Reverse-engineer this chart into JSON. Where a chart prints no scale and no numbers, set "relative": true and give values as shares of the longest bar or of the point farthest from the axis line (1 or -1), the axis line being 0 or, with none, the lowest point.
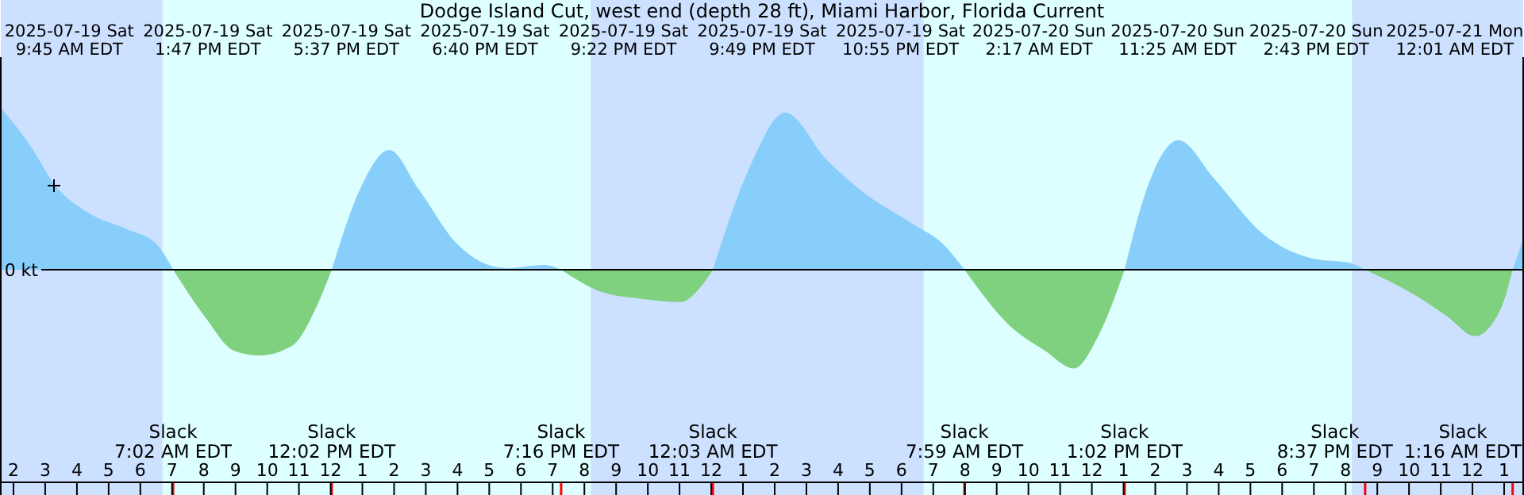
{
  "chart_data": {
    "type": "area",
    "title": "Dodge Island Cut, west end (depth 28 ft), Miami Harbor, Florida Current",
    "relative": true,
    "x": [
      "2025-07-19T01:36",
      "2025-07-19T02:31",
      "2025-07-19T03:17",
      "2025-07-19T04:22",
      "2025-07-19T05:35",
      "2025-07-19T06:30",
      "2025-07-19T07:02",
      "2025-07-19T08:02",
      "2025-07-19T08:57",
      "2025-07-19T09:43",
      "2025-07-19T10:47",
      "2025-07-19T11:33",
      "2025-07-19T12:02",
      "2025-07-19T12:56",
      "2025-07-19T13:51",
      "2025-07-19T14:46",
      "2025-07-19T15:59",
      "2025-07-19T17:31",
      "2025-07-19T18:45",
      "2025-07-19T19:16",
      "2025-07-19T20:35",
      "2025-07-19T21:49",
      "2025-07-19T23:02",
      "2025-07-19T23:39",
      "2025-07-20T00:03",
      "2025-07-20T01:11",
      "2025-07-20T02:20",
      "2025-07-20T03:38",
      "2025-07-20T04:51",
      "2025-07-20T06:23",
      "2025-07-20T07:18",
      "2025-07-20T07:59",
      "2025-07-20T09:26",
      "2025-07-20T10:31",
      "2025-07-20T11:26",
      "2025-07-20T12:12",
      "2025-07-20T13:02",
      "2025-07-20T13:44",
      "2025-07-20T14:44",
      "2025-07-20T15:52",
      "2025-07-20T17:24",
      "2025-07-20T18:56",
      "2025-07-20T20:10",
      "2025-07-20T20:37",
      "2025-07-20T22:18",
      "2025-07-20T23:13",
      "2025-07-21T00:05",
      "2025-07-21T00:55",
      "2025-07-21T01:16",
      "2025-07-21T01:36"
    ],
    "series": [
      {
        "color": "#87cefa",
        "values": [
          1.0,
          0.77,
          0.53,
          0.35,
          0.25,
          0.16,
          0,
          null,
          null,
          null,
          null,
          null,
          0,
          0.5,
          0.74,
          0.5,
          0.16,
          0.01,
          0.03,
          0,
          null,
          null,
          null,
          null,
          0,
          0.62,
          0.97,
          0.68,
          0.47,
          0.28,
          0.16,
          0,
          null,
          null,
          null,
          null,
          0,
          0.5,
          0.8,
          0.56,
          0.22,
          0.07,
          0.04,
          0,
          null,
          null,
          null,
          null,
          0,
          0.19
        ]
      },
      {
        "color": "#7fd07f",
        "values": [
          null,
          null,
          null,
          null,
          null,
          null,
          0,
          -0.29,
          -0.5,
          -0.53,
          -0.47,
          -0.23,
          0,
          null,
          null,
          null,
          null,
          null,
          null,
          0,
          -0.14,
          -0.18,
          -0.2,
          -0.11,
          0,
          null,
          null,
          null,
          null,
          null,
          null,
          0,
          -0.35,
          -0.5,
          -0.61,
          -0.41,
          0,
          null,
          null,
          null,
          null,
          null,
          null,
          0,
          -0.17,
          -0.29,
          -0.41,
          -0.23,
          0,
          null
        ]
      }
    ],
    "xlim": [
      "2025-07-19T01:36",
      "2025-07-21T01:36"
    ],
    "xticks": [
      {
        "value": "2025-07-19T02:00",
        "label": "2"
      },
      {
        "value": "2025-07-19T03:00",
        "label": "3"
      },
      {
        "value": "2025-07-19T04:00",
        "label": "4"
      },
      {
        "value": "2025-07-19T05:00",
        "label": "5"
      },
      {
        "value": "2025-07-19T06:00",
        "label": "6"
      },
      {
        "value": "2025-07-19T07:00",
        "label": "7"
      },
      {
        "value": "2025-07-19T08:00",
        "label": "8"
      },
      {
        "value": "2025-07-19T09:00",
        "label": "9"
      },
      {
        "value": "2025-07-19T10:00",
        "label": "10"
      },
      {
        "value": "2025-07-19T11:00",
        "label": "11"
      },
      {
        "value": "2025-07-19T12:00",
        "label": "12"
      },
      {
        "value": "2025-07-19T13:00",
        "label": "1"
      },
      {
        "value": "2025-07-19T14:00",
        "label": "2"
      },
      {
        "value": "2025-07-19T15:00",
        "label": "3"
      },
      {
        "value": "2025-07-19T16:00",
        "label": "4"
      },
      {
        "value": "2025-07-19T17:00",
        "label": "5"
      },
      {
        "value": "2025-07-19T18:00",
        "label": "6"
      },
      {
        "value": "2025-07-19T19:00",
        "label": "7"
      },
      {
        "value": "2025-07-19T20:00",
        "label": "8"
      },
      {
        "value": "2025-07-19T21:00",
        "label": "9"
      },
      {
        "value": "2025-07-19T22:00",
        "label": "10"
      },
      {
        "value": "2025-07-19T23:00",
        "label": "11"
      },
      {
        "value": "2025-07-20T00:00",
        "label": "12"
      },
      {
        "value": "2025-07-20T01:00",
        "label": "1"
      },
      {
        "value": "2025-07-20T02:00",
        "label": "2"
      },
      {
        "value": "2025-07-20T03:00",
        "label": "3"
      },
      {
        "value": "2025-07-20T04:00",
        "label": "4"
      },
      {
        "value": "2025-07-20T05:00",
        "label": "5"
      },
      {
        "value": "2025-07-20T06:00",
        "label": "6"
      },
      {
        "value": "2025-07-20T07:00",
        "label": "7"
      },
      {
        "value": "2025-07-20T08:00",
        "label": "8"
      },
      {
        "value": "2025-07-20T09:00",
        "label": "9"
      },
      {
        "value": "2025-07-20T10:00",
        "label": "10"
      },
      {
        "value": "2025-07-20T11:00",
        "label": "11"
      },
      {
        "value": "2025-07-20T12:00",
        "label": "12"
      },
      {
        "value": "2025-07-20T13:00",
        "label": "1"
      },
      {
        "value": "2025-07-20T14:00",
        "label": "2"
      },
      {
        "value": "2025-07-20T15:00",
        "label": "3"
      },
      {
        "value": "2025-07-20T16:00",
        "label": "4"
      },
      {
        "value": "2025-07-20T17:00",
        "label": "5"
      },
      {
        "value": "2025-07-20T18:00",
        "label": "6"
      },
      {
        "value": "2025-07-20T19:00",
        "label": "7"
      },
      {
        "value": "2025-07-20T20:00",
        "label": "8"
      },
      {
        "value": "2025-07-20T21:00",
        "label": "9"
      },
      {
        "value": "2025-07-20T22:00",
        "label": "10"
      },
      {
        "value": "2025-07-20T23:00",
        "label": "11"
      },
      {
        "value": "2025-07-21T00:00",
        "label": "12"
      },
      {
        "value": "2025-07-21T01:00",
        "label": "1"
      }
    ],
    "bands": [
      {
        "axis": "x",
        "from": "2025-07-19T01:36",
        "to": "2025-07-19T06:42",
        "color": "#cce0ff"
      },
      {
        "axis": "x",
        "from": "2025-07-19T06:42",
        "to": "2025-07-19T20:12",
        "color": "#ddffff"
      },
      {
        "axis": "x",
        "from": "2025-07-19T20:12",
        "to": "2025-07-20T06:42",
        "color": "#cce0ff"
      },
      {
        "axis": "x",
        "from": "2025-07-20T06:42",
        "to": "2025-07-20T20:12",
        "color": "#ddffff"
      },
      {
        "axis": "x",
        "from": "2025-07-20T20:12",
        "to": "2025-07-21T01:36",
        "color": "#cce0ff"
      }
    ],
    "ref_lines": [
      {
        "axis": "y",
        "value": 0,
        "label": "0 kt"
      },
      {
        "axis": "x",
        "value": "2025-07-19T07:02",
        "label": "Slack\n7:02 AM EDT",
        "color": "#ff0000"
      },
      {
        "axis": "x",
        "value": "2025-07-19T12:02",
        "label": "Slack\n12:02 PM EDT",
        "color": "#ff0000"
      },
      {
        "axis": "x",
        "value": "2025-07-19T19:16",
        "label": "Slack\n7:16 PM EDT",
        "color": "#ff0000"
      },
      {
        "axis": "x",
        "value": "2025-07-20T00:03",
        "label": "Slack\n12:03 AM EDT",
        "color": "#ff0000"
      },
      {
        "axis": "x",
        "value": "2025-07-20T07:59",
        "label": "Slack\n7:59 AM EDT",
        "color": "#ff0000"
      },
      {
        "axis": "x",
        "value": "2025-07-20T13:02",
        "label": "Slack\n1:02 PM EDT",
        "color": "#ff0000"
      },
      {
        "axis": "x",
        "value": "2025-07-20T20:37",
        "label": "Slack\n8:37 PM EDT",
        "color": "#ff0000"
      },
      {
        "axis": "x",
        "value": "2025-07-21T01:16",
        "label": "Slack\n1:16 AM EDT",
        "color": "#ff0000"
      }
    ],
    "annotations": [
      "2025-07-19 Sat\n9:45 AM EDT",
      "2025-07-19 Sat\n1:47 PM EDT",
      "2025-07-19 Sat\n5:37 PM EDT",
      "2025-07-19 Sat\n6:40 PM EDT",
      "2025-07-19 Sat\n9:22 PM EDT",
      "2025-07-19 Sat\n9:49 PM EDT",
      "2025-07-19 Sat\n10:55 PM EDT",
      "2025-07-20 Sun\n2:17 AM EDT",
      "2025-07-20 Sun\n11:25 AM EDT",
      "2025-07-20 Sun\n2:43 PM EDT",
      "2025-07-21 Mon\n12:01 AM EDT"
    ]
  }
}
